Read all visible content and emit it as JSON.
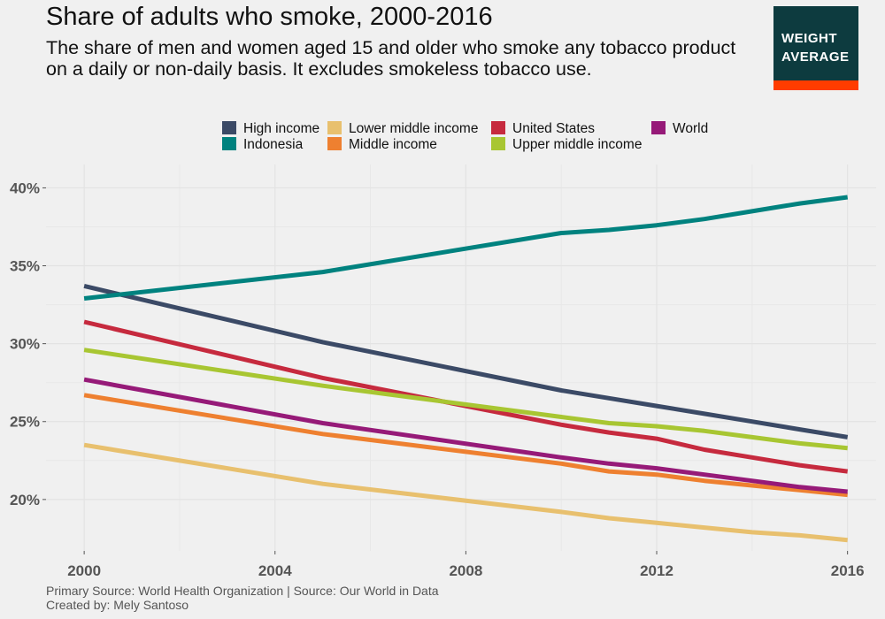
{
  "header": {
    "title": "Share of adults who smoke, 2000-2016",
    "subtitle": "The share of men and women aged 15 and older who smoke any tobacco product on a daily or non-daily basis. It excludes smokeless tobacco use."
  },
  "logo": {
    "line1": "WEIGHT",
    "line2": "AVERAGE",
    "bg_color": "#0d3b3f",
    "accent_color": "#ff3c00"
  },
  "caption": {
    "line1": "Primary Source: World Health Organization | Source: Our World in Data",
    "line2": "Created by: Mely Santoso"
  },
  "chart_data": {
    "type": "line",
    "title": "Share of adults who smoke, 2000-2016",
    "xlabel": "",
    "ylabel": "",
    "xlim": [
      1999.2,
      2016.6
    ],
    "ylim": [
      16.7,
      41.5
    ],
    "x_ticks": [
      2000,
      2004,
      2008,
      2012,
      2016
    ],
    "y_ticks": [
      20,
      25,
      30,
      35,
      40
    ],
    "y_tick_format": "%",
    "grid": true,
    "legend_position": "top",
    "legend_order": [
      "High income",
      "Indonesia",
      "Lower middle income",
      "Middle income",
      "United States",
      "Upper middle income",
      "World"
    ],
    "x": [
      2000,
      2005,
      2010,
      2011,
      2012,
      2013,
      2014,
      2015,
      2016
    ],
    "series": [
      {
        "name": "High income",
        "color": "#3b4a66",
        "values": [
          33.7,
          30.1,
          27.0,
          26.5,
          26.0,
          25.5,
          25.0,
          24.5,
          24.0
        ]
      },
      {
        "name": "Indonesia",
        "color": "#00827f",
        "values": [
          32.9,
          34.6,
          37.1,
          37.3,
          37.6,
          38.0,
          38.5,
          39.0,
          39.4
        ]
      },
      {
        "name": "Lower middle income",
        "color": "#e8c06e",
        "values": [
          23.5,
          21.0,
          19.2,
          18.8,
          18.5,
          18.2,
          17.9,
          17.7,
          17.4
        ]
      },
      {
        "name": "Middle income",
        "color": "#ee8030",
        "values": [
          26.7,
          24.2,
          22.3,
          21.8,
          21.6,
          21.2,
          20.9,
          20.6,
          20.3
        ]
      },
      {
        "name": "United States",
        "color": "#c62a3e",
        "values": [
          31.4,
          27.8,
          24.8,
          24.3,
          23.9,
          23.2,
          22.7,
          22.2,
          21.8
        ]
      },
      {
        "name": "Upper middle income",
        "color": "#a8c632",
        "values": [
          29.6,
          27.3,
          25.3,
          24.9,
          24.7,
          24.4,
          24.0,
          23.6,
          23.3
        ]
      },
      {
        "name": "World",
        "color": "#961a78",
        "values": [
          27.7,
          24.9,
          22.7,
          22.3,
          22.0,
          21.6,
          21.2,
          20.8,
          20.5
        ]
      }
    ]
  }
}
